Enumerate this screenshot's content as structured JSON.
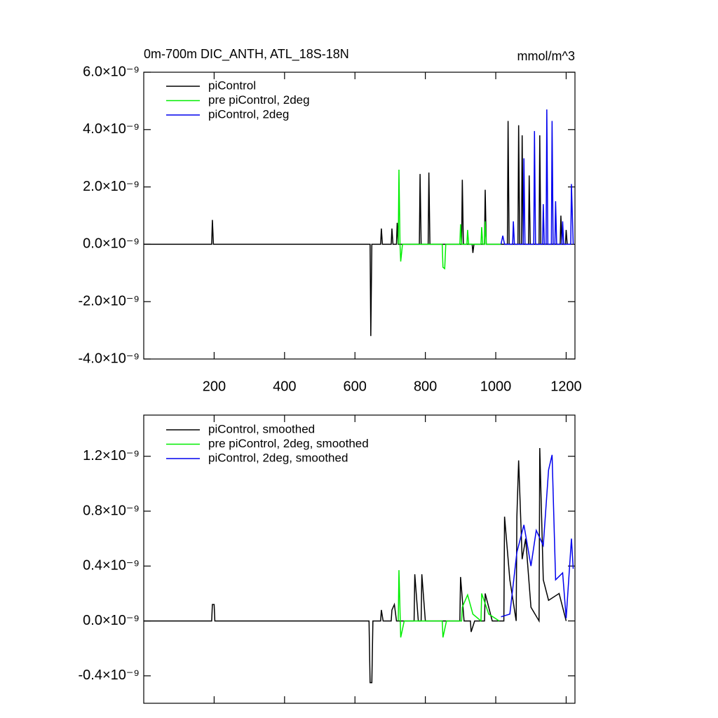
{
  "chart_data": [
    {
      "type": "line",
      "title": "0m-700m DIC_ANTH, ATL_18S-18N",
      "units": "mmol/m^3",
      "xlim": [
        0,
        1225
      ],
      "xticks": [
        200,
        400,
        600,
        800,
        1000,
        1200
      ],
      "ylim": [
        -4e-09,
        6e-09
      ],
      "yticks": [
        {
          "value": -4e-09,
          "label": "-4.0×10⁻⁹"
        },
        {
          "value": -2e-09,
          "label": "-2.0×10⁻⁹"
        },
        {
          "value": 0,
          "label": "0.0×10⁻⁹"
        },
        {
          "value": 2e-09,
          "label": "2.0×10⁻⁹"
        },
        {
          "value": 4e-09,
          "label": "4.0×10⁻⁹"
        },
        {
          "value": 6e-09,
          "label": "6.0×10⁻⁹"
        }
      ],
      "series": [
        {
          "name": "piControl",
          "color": "#000000",
          "x": [
            0,
            193,
            195,
            198,
            643,
            645,
            648,
            673,
            675,
            678,
            703,
            705,
            708,
            718,
            720,
            723,
            783,
            785,
            788,
            808,
            810,
            813,
            903,
            905,
            908,
            933,
            935,
            938,
            968,
            970,
            973,
            1033,
            1035,
            1038,
            1063,
            1065,
            1068,
            1073,
            1075,
            1078,
            1093,
            1095,
            1098,
            1123,
            1125,
            1128,
            1183,
            1185,
            1188,
            1198,
            1200,
            1203
          ],
          "values": [
            0,
            0,
            8.5e-10,
            0,
            0,
            -3.2e-09,
            0,
            0,
            5.5e-10,
            0,
            0,
            5.5e-10,
            0,
            0,
            7.5e-10,
            0,
            0,
            2.45e-09,
            0,
            0,
            2.5e-09,
            0,
            0,
            2.25e-09,
            0,
            0,
            -3e-10,
            0,
            0,
            1.9e-09,
            0,
            0,
            4.3e-09,
            0,
            0,
            4.15e-09,
            0,
            0,
            3.8e-09,
            0,
            0,
            2.4e-09,
            0,
            0,
            3.8e-09,
            0,
            0,
            1e-09,
            0,
            0,
            5e-10,
            0
          ]
        },
        {
          "name": "pre piControl, 2deg",
          "color": "#00ee00",
          "x": [
            723,
            725,
            728,
            730,
            735,
            848,
            850,
            855,
            858,
            898,
            900,
            903,
            918,
            920,
            923,
            958,
            960,
            963,
            968,
            970,
            973,
            1015
          ],
          "values": [
            0,
            2.6e-09,
            0,
            -6e-10,
            0,
            0,
            -8e-10,
            -8.5e-10,
            0,
            0,
            7e-10,
            0,
            0,
            5e-10,
            0,
            0,
            6e-10,
            0,
            0,
            8e-10,
            0,
            0
          ]
        },
        {
          "name": "piControl, 2deg",
          "color": "#0000ee",
          "x": [
            1015,
            1020,
            1025,
            1048,
            1050,
            1053,
            1078,
            1080,
            1083,
            1108,
            1110,
            1113,
            1133,
            1135,
            1138,
            1143,
            1145,
            1148,
            1158,
            1160,
            1163,
            1168,
            1170,
            1173,
            1188,
            1190,
            1193,
            1213,
            1215,
            1220
          ],
          "values": [
            0,
            3e-10,
            0,
            0,
            8e-10,
            0,
            0,
            3e-09,
            0,
            0,
            3.95e-09,
            0,
            0,
            1.4e-09,
            0,
            0,
            4.7e-09,
            0,
            0,
            4.3e-09,
            0,
            0,
            1.5e-09,
            0,
            0,
            8e-10,
            0,
            0,
            2.1e-09,
            0
          ]
        }
      ]
    },
    {
      "type": "line",
      "xlim": [
        0,
        1225
      ],
      "ylim": [
        -6e-10,
        1.5e-09
      ],
      "yticks": [
        {
          "value": -4e-10,
          "label": "-0.4×10⁻⁹"
        },
        {
          "value": 0,
          "label": "0.0×10⁻⁹"
        },
        {
          "value": 4e-10,
          "label": "0.4×10⁻⁹"
        },
        {
          "value": 8e-10,
          "label": "0.8×10⁻⁹"
        },
        {
          "value": 1.2e-09,
          "label": "1.2×10⁻⁹"
        }
      ],
      "series": [
        {
          "name": "piControl, smoothed",
          "color": "#000000",
          "x": [
            0,
            193,
            195,
            200,
            202,
            640,
            643,
            648,
            651,
            673,
            675,
            680,
            703,
            705,
            712,
            718,
            768,
            770,
            780,
            788,
            790,
            800,
            898,
            900,
            910,
            928,
            930,
            940,
            968,
            970,
            990,
            1023,
            1025,
            1040,
            1058,
            1060,
            1065,
            1075,
            1085,
            1100,
            1123,
            1125,
            1135,
            1150,
            1180,
            1200
          ],
          "values": [
            0,
            0,
            1.2e-10,
            1.2e-10,
            0,
            0,
            -4.5e-10,
            -4.5e-10,
            0,
            0,
            8e-11,
            0,
            0,
            8e-11,
            1.2e-10,
            0,
            0,
            3.4e-10,
            0,
            0,
            3.4e-10,
            0,
            0,
            3.2e-10,
            0,
            0,
            -8e-11,
            0,
            0,
            2e-10,
            0,
            0,
            7.6e-10,
            3e-10,
            0,
            7.6e-10,
            1.17e-09,
            4.5e-10,
            6e-10,
            1e-10,
            0,
            1.26e-09,
            3e-10,
            1.5e-10,
            2e-10,
            0
          ]
        },
        {
          "name": "pre piControl, 2deg, smoothed",
          "color": "#00ee00",
          "x": [
            723,
            725,
            730,
            740,
            848,
            850,
            860,
            903,
            905,
            920,
            935,
            958,
            960,
            980,
            1010
          ],
          "values": [
            0,
            3.7e-10,
            -1.2e-10,
            0,
            0,
            -1.2e-10,
            0,
            0,
            1e-10,
            1.9e-10,
            5e-11,
            0,
            2e-10,
            5e-11,
            0
          ]
        },
        {
          "name": "piControl, 2deg, smoothed",
          "color": "#0000ee",
          "x": [
            1015,
            1040,
            1060,
            1080,
            1100,
            1115,
            1135,
            1150,
            1160,
            1170,
            1190,
            1200,
            1215,
            1220
          ],
          "values": [
            3e-11,
            5e-11,
            5e-10,
            7e-10,
            4e-10,
            6.6e-10,
            5.5e-10,
            1.1e-09,
            1.21e-09,
            3e-10,
            3.5e-10,
            2e-11,
            6e-10,
            3.8e-10
          ]
        }
      ]
    }
  ]
}
